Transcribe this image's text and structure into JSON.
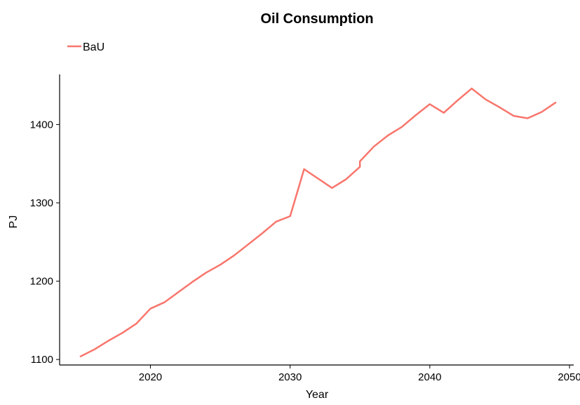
{
  "chart_data": {
    "type": "line",
    "title": "Oil Consumption",
    "xlabel": "Year",
    "ylabel": "PJ",
    "xlim": [
      2013.5,
      2050.3
    ],
    "ylim": [
      1093,
      1464
    ],
    "x_ticks": [
      2020,
      2030,
      2040,
      2050
    ],
    "y_ticks": [
      1100,
      1200,
      1300,
      1400
    ],
    "grid": false,
    "legend_position": "top-left",
    "series": [
      {
        "name": "BaU",
        "color": "#F8766D",
        "points": [
          [
            2015,
            1104
          ],
          [
            2016,
            1113
          ],
          [
            2017,
            1124
          ],
          [
            2018,
            1134
          ],
          [
            2019,
            1146
          ],
          [
            2020,
            1165
          ],
          [
            2021,
            1173
          ],
          [
            2022,
            1186
          ],
          [
            2023,
            1199
          ],
          [
            2024,
            1211
          ],
          [
            2025,
            1221
          ],
          [
            2026,
            1233
          ],
          [
            2027,
            1247
          ],
          [
            2028,
            1261
          ],
          [
            2029,
            1276
          ],
          [
            2030,
            1283
          ],
          [
            2031,
            1343
          ],
          [
            2032,
            1331
          ],
          [
            2033,
            1319
          ],
          [
            2034,
            1330
          ],
          [
            2035,
            1346
          ],
          [
            2035,
            1353
          ],
          [
            2036,
            1372
          ],
          [
            2037,
            1386
          ],
          [
            2038,
            1397
          ],
          [
            2039,
            1412
          ],
          [
            2040,
            1426
          ],
          [
            2041,
            1415
          ],
          [
            2042,
            1431
          ],
          [
            2043,
            1446
          ],
          [
            2044,
            1432
          ],
          [
            2045,
            1422
          ],
          [
            2046,
            1411
          ],
          [
            2047,
            1408
          ],
          [
            2048,
            1416
          ],
          [
            2049,
            1428
          ]
        ]
      }
    ]
  }
}
